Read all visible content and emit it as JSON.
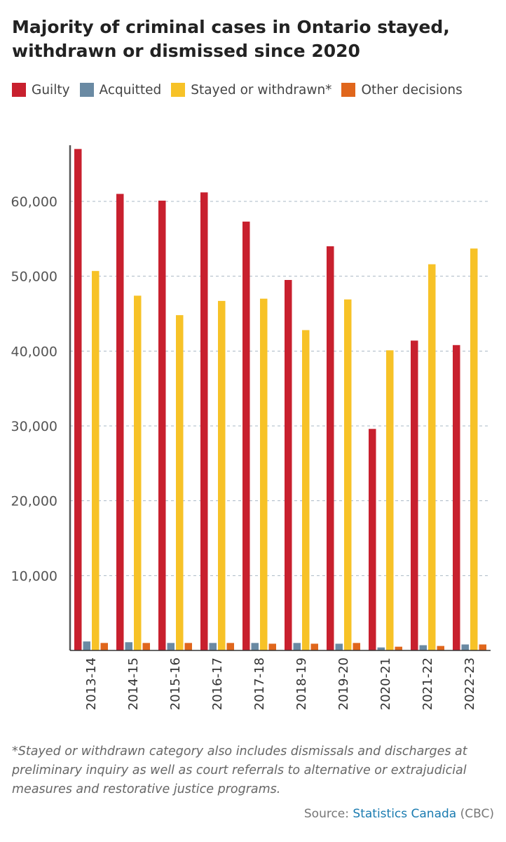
{
  "chart_data": {
    "type": "bar",
    "title": "Majority of criminal cases in Ontario stayed, withdrawn or dismissed since 2020",
    "categories": [
      "2013-14",
      "2014-15",
      "2015-16",
      "2016-17",
      "2017-18",
      "2018-19",
      "2019-20",
      "2020-21",
      "2021-22",
      "2022-23"
    ],
    "series": [
      {
        "name": "Guilty",
        "color": "#c8202e",
        "values": [
          67000,
          61000,
          60100,
          61200,
          57300,
          49500,
          54000,
          29600,
          41400,
          40800
        ]
      },
      {
        "name": "Acquitted",
        "color": "#6a8aa3",
        "values": [
          1200,
          1100,
          1000,
          1000,
          1000,
          1000,
          900,
          400,
          700,
          800
        ]
      },
      {
        "name": "Stayed or withdrawn*",
        "color": "#f7c227",
        "values": [
          50700,
          47400,
          44800,
          46700,
          47000,
          42800,
          46900,
          40100,
          51600,
          53700
        ]
      },
      {
        "name": "Other decisions",
        "color": "#e0661c",
        "values": [
          1000,
          1000,
          1000,
          1000,
          900,
          900,
          1000,
          500,
          600,
          800
        ]
      }
    ],
    "yticks": [
      10000,
      20000,
      30000,
      40000,
      50000,
      60000
    ],
    "ytick_labels": [
      "10,000",
      "20,000",
      "30,000",
      "40,000",
      "50,000",
      "60,000"
    ],
    "ylim": [
      0,
      67500
    ],
    "xlabel": "",
    "ylabel": "",
    "grid": true,
    "legend_position": "top"
  },
  "footnote": "*Stayed or withdrawn category also includes dismissals and discharges at preliminary inquiry as well as court referrals to alternative or extrajudicial measures and restorative justice programs.",
  "source": {
    "label": "Source:",
    "link_text": "Statistics Canada",
    "credit": "(CBC)"
  }
}
